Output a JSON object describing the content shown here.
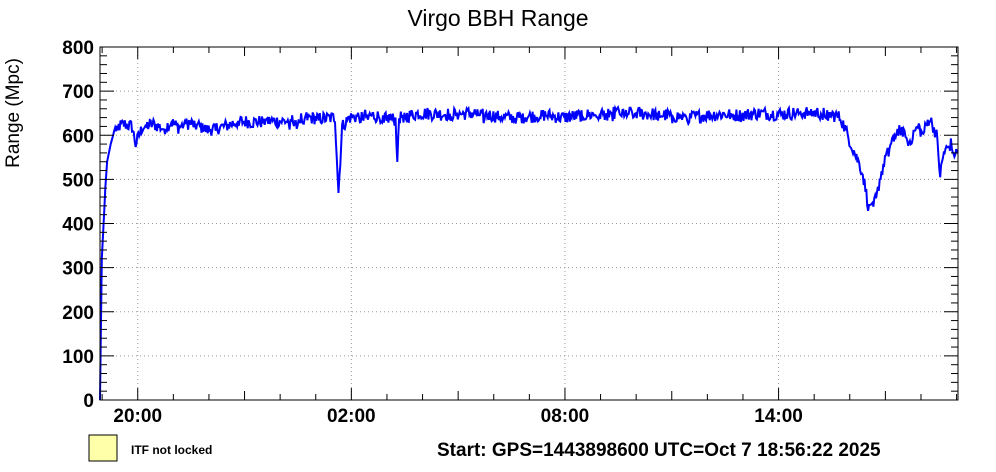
{
  "chart_data": {
    "type": "line",
    "title": "Virgo BBH Range",
    "ylabel": "Range (Mpc)",
    "xlabel": "",
    "ylim": [
      0,
      800
    ],
    "xlim_hours_from_start": [
      0,
      24.1
    ],
    "y_ticks": [
      "0",
      "100",
      "200",
      "300",
      "400",
      "500",
      "600",
      "700",
      "800"
    ],
    "x_ticks": [
      {
        "label": "20:00",
        "hours_from_start": 1.06
      },
      {
        "label": "02:00",
        "hours_from_start": 7.06
      },
      {
        "label": "08:00",
        "hours_from_start": 13.06
      },
      {
        "label": "14:00",
        "hours_from_start": 19.06
      }
    ],
    "grid": true,
    "series": [
      {
        "color": "#0000ff",
        "points": [
          [
            0.0,
            0
          ],
          [
            0.05,
            320
          ],
          [
            0.1,
            400
          ],
          [
            0.15,
            480
          ],
          [
            0.2,
            540
          ],
          [
            0.3,
            580
          ],
          [
            0.4,
            610
          ],
          [
            0.5,
            620
          ],
          [
            0.7,
            625
          ],
          [
            0.9,
            620
          ],
          [
            1.0,
            580
          ],
          [
            1.2,
            620
          ],
          [
            1.5,
            625
          ],
          [
            1.8,
            615
          ],
          [
            2.0,
            630
          ],
          [
            2.2,
            618
          ],
          [
            2.5,
            628
          ],
          [
            2.8,
            620
          ],
          [
            3.0,
            612
          ],
          [
            3.5,
            620
          ],
          [
            3.9,
            632
          ],
          [
            4.3,
            630
          ],
          [
            4.8,
            632
          ],
          [
            5.3,
            632
          ],
          [
            5.8,
            640
          ],
          [
            6.3,
            638
          ],
          [
            6.6,
            640
          ],
          [
            6.7,
            470
          ],
          [
            6.8,
            620
          ],
          [
            7.0,
            640
          ],
          [
            7.5,
            645
          ],
          [
            8.0,
            642
          ],
          [
            8.3,
            635
          ],
          [
            8.35,
            550
          ],
          [
            8.4,
            640
          ],
          [
            9.0,
            650
          ],
          [
            9.5,
            648
          ],
          [
            10.0,
            648
          ],
          [
            10.5,
            650
          ],
          [
            11.0,
            645
          ],
          [
            11.5,
            640
          ],
          [
            12.0,
            642
          ],
          [
            12.5,
            646
          ],
          [
            13.0,
            640
          ],
          [
            13.5,
            645
          ],
          [
            14.0,
            648
          ],
          [
            14.5,
            652
          ],
          [
            15.0,
            650
          ],
          [
            15.5,
            648
          ],
          [
            16.0,
            645
          ],
          [
            16.5,
            640
          ],
          [
            17.0,
            645
          ],
          [
            17.5,
            648
          ],
          [
            18.0,
            645
          ],
          [
            18.5,
            650
          ],
          [
            19.0,
            648
          ],
          [
            19.5,
            650
          ],
          [
            20.0,
            652
          ],
          [
            20.5,
            648
          ],
          [
            20.8,
            640
          ],
          [
            21.0,
            600
          ],
          [
            21.2,
            560
          ],
          [
            21.4,
            520
          ],
          [
            21.5,
            480
          ],
          [
            21.6,
            430
          ],
          [
            21.7,
            460
          ],
          [
            21.8,
            450
          ],
          [
            21.9,
            500
          ],
          [
            22.1,
            560
          ],
          [
            22.3,
            600
          ],
          [
            22.5,
            620
          ],
          [
            22.7,
            580
          ],
          [
            22.9,
            610
          ],
          [
            23.0,
            620
          ],
          [
            23.1,
            600
          ],
          [
            23.3,
            640
          ],
          [
            23.5,
            600
          ],
          [
            23.6,
            510
          ],
          [
            23.7,
            560
          ],
          [
            23.8,
            570
          ],
          [
            23.9,
            580
          ],
          [
            24.0,
            560
          ],
          [
            24.1,
            560
          ]
        ]
      }
    ]
  },
  "legend": {
    "entry_label": "ITF not locked",
    "swatch_color": "#ffffaa"
  },
  "footer": {
    "start_text": "Start: GPS=1443898600 UTC=Oct  7 18:56:22 2025"
  }
}
